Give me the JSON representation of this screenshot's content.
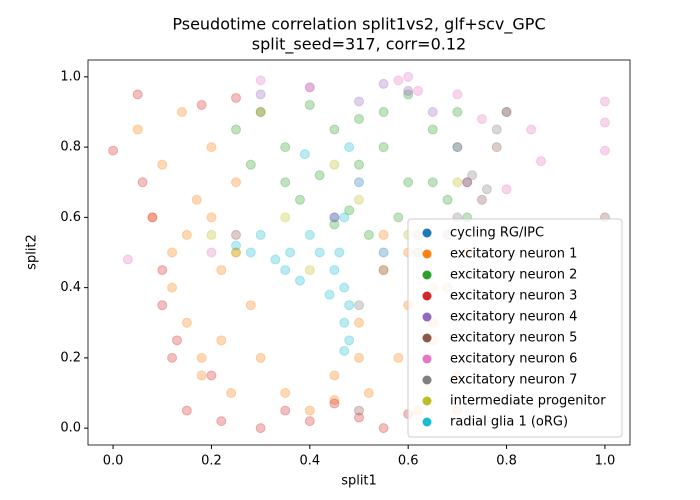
{
  "chart_data": {
    "type": "scatter",
    "title": "Pseudotime correlation split1vs2, glf+scv_GPC",
    "subtitle": "split_seed=317, corr=0.12",
    "x_label": "split1",
    "y_label": "split2",
    "xlim": [
      -0.051,
      1.051
    ],
    "ylim": [
      -0.048,
      1.048
    ],
    "xticks": [
      {
        "value": 0,
        "label": "0.0"
      },
      {
        "value": 0.2,
        "label": "0.2"
      },
      {
        "value": 0.4,
        "label": "0.4"
      },
      {
        "value": 0.6,
        "label": "0.6"
      },
      {
        "value": 0.8,
        "label": "0.8"
      },
      {
        "value": 1,
        "label": "1.0"
      }
    ],
    "yticks": [
      {
        "value": 0,
        "label": "0.0"
      },
      {
        "value": 0.2,
        "label": "0.2"
      },
      {
        "value": 0.4,
        "label": "0.4"
      },
      {
        "value": 0.6,
        "label": "0.6"
      },
      {
        "value": 0.8,
        "label": "0.8"
      },
      {
        "value": 1,
        "label": "1.0"
      }
    ],
    "grid": false,
    "legend": "lower right",
    "series": [
      {
        "name": "cycling RG/IPC",
        "color": "#1f77b4",
        "x": [
          0.45,
          0.5,
          0.55
        ],
        "values": [
          0.6,
          0.7,
          0.5
        ]
      },
      {
        "name": "excitatory neuron 1",
        "color": "#ff7f0e",
        "x": [
          0.05,
          0.08,
          0.1,
          0.12,
          0.14,
          0.15,
          0.17,
          0.18,
          0.2,
          0.22,
          0.24,
          0.25,
          0.28,
          0.3,
          0.15,
          0.12,
          0.2,
          0.22,
          0.18,
          0.25,
          0.3,
          0.35,
          0.4,
          0.45,
          0.5,
          0.52,
          0.55,
          0.58,
          0.6,
          0.62,
          0.65,
          0.68,
          0.7,
          0.55,
          0.6,
          0.65,
          0.5,
          0.45,
          0.7,
          0.72
        ],
        "values": [
          0.85,
          0.6,
          0.75,
          0.5,
          0.9,
          0.3,
          0.65,
          0.2,
          0.8,
          0.45,
          0.1,
          0.7,
          0.35,
          0.9,
          0.55,
          0.4,
          0.6,
          0.25,
          0.15,
          0.5,
          0.2,
          0.1,
          0.05,
          0.15,
          0.3,
          0.1,
          0.45,
          0.2,
          0.35,
          0.05,
          0.25,
          0.4,
          0.15,
          0.55,
          0.5,
          0.3,
          0.2,
          0.08,
          0.05,
          0.5
        ]
      },
      {
        "name": "excitatory neuron 2",
        "color": "#2ca02c",
        "x": [
          0.3,
          0.35,
          0.4,
          0.45,
          0.5,
          0.55,
          0.6,
          0.65,
          0.7,
          0.72,
          0.38,
          0.42,
          0.48,
          0.52,
          0.58,
          0.62,
          0.68,
          0.5,
          0.55,
          0.6,
          0.65,
          0.45,
          0.35,
          0.7,
          0.25,
          0.28
        ],
        "values": [
          0.9,
          0.8,
          0.92,
          0.85,
          0.75,
          0.9,
          0.7,
          0.85,
          0.8,
          0.6,
          0.65,
          0.72,
          0.62,
          0.55,
          0.6,
          0.5,
          0.65,
          0.88,
          0.8,
          0.95,
          0.7,
          0.58,
          0.7,
          0.9,
          0.85,
          0.75
        ]
      },
      {
        "name": "excitatory neuron 3",
        "color": "#d62728",
        "x": [
          0.0,
          0.05,
          0.08,
          0.1,
          0.12,
          0.15,
          0.18,
          0.22,
          0.3,
          0.35,
          0.4,
          0.45,
          0.55,
          0.6,
          0.1,
          0.06,
          0.2,
          0.25,
          0.5,
          0.13
        ],
        "values": [
          0.79,
          0.95,
          0.6,
          0.35,
          0.2,
          0.05,
          0.92,
          0.02,
          0.0,
          0.05,
          0.02,
          0.07,
          0.0,
          0.04,
          0.45,
          0.7,
          0.15,
          0.94,
          0.03,
          0.25
        ]
      },
      {
        "name": "excitatory neuron 4",
        "color": "#9467bd",
        "x": [
          0.3,
          0.4,
          0.5,
          0.6,
          0.65,
          0.7,
          0.72,
          0.55,
          0.45,
          0.68
        ],
        "values": [
          0.95,
          0.97,
          0.93,
          0.96,
          0.9,
          0.8,
          0.7,
          0.98,
          0.6,
          0.55
        ]
      },
      {
        "name": "excitatory neuron 5",
        "color": "#8c564b",
        "x": [
          0.72,
          0.75,
          0.78,
          0.8,
          1.0,
          0.25,
          0.5
        ],
        "values": [
          0.7,
          0.65,
          0.8,
          0.9,
          0.6,
          0.55,
          0.05
        ]
      },
      {
        "name": "excitatory neuron 6",
        "color": "#e377c2",
        "x": [
          0.3,
          0.4,
          0.58,
          0.6,
          0.62,
          0.7,
          0.75,
          0.8,
          0.85,
          0.87,
          1.0,
          1.0,
          1.0,
          0.03,
          0.2
        ],
        "values": [
          0.99,
          0.97,
          0.99,
          1.0,
          0.96,
          0.95,
          0.88,
          0.68,
          0.85,
          0.76,
          0.93,
          0.87,
          0.79,
          0.48,
          0.5
        ]
      },
      {
        "name": "excitatory neuron 7",
        "color": "#7f7f7f",
        "x": [
          0.7,
          0.73,
          0.76,
          0.78,
          0.8,
          0.62,
          0.55,
          0.5
        ],
        "values": [
          0.6,
          0.72,
          0.68,
          0.85,
          0.9,
          0.55,
          0.45,
          0.35
        ]
      },
      {
        "name": "intermediate progenitor",
        "color": "#bcbd22",
        "x": [
          0.2,
          0.25,
          0.35,
          0.45,
          0.6,
          0.65,
          0.7,
          0.5,
          0.4
        ],
        "values": [
          0.55,
          0.5,
          0.6,
          0.75,
          0.55,
          0.4,
          0.7,
          0.65,
          0.45
        ]
      },
      {
        "name": "radial glia 1 (oRG)",
        "color": "#17becf",
        "x": [
          0.25,
          0.28,
          0.3,
          0.33,
          0.36,
          0.4,
          0.42,
          0.45,
          0.47,
          0.47,
          0.47,
          0.48,
          0.48,
          0.46,
          0.44,
          0.38,
          0.35,
          0.47,
          0.48,
          0.39
        ],
        "values": [
          0.52,
          0.5,
          0.55,
          0.48,
          0.5,
          0.55,
          0.5,
          0.45,
          0.4,
          0.3,
          0.22,
          0.35,
          0.25,
          0.5,
          0.38,
          0.42,
          0.45,
          0.6,
          0.8,
          0.78
        ]
      }
    ]
  }
}
